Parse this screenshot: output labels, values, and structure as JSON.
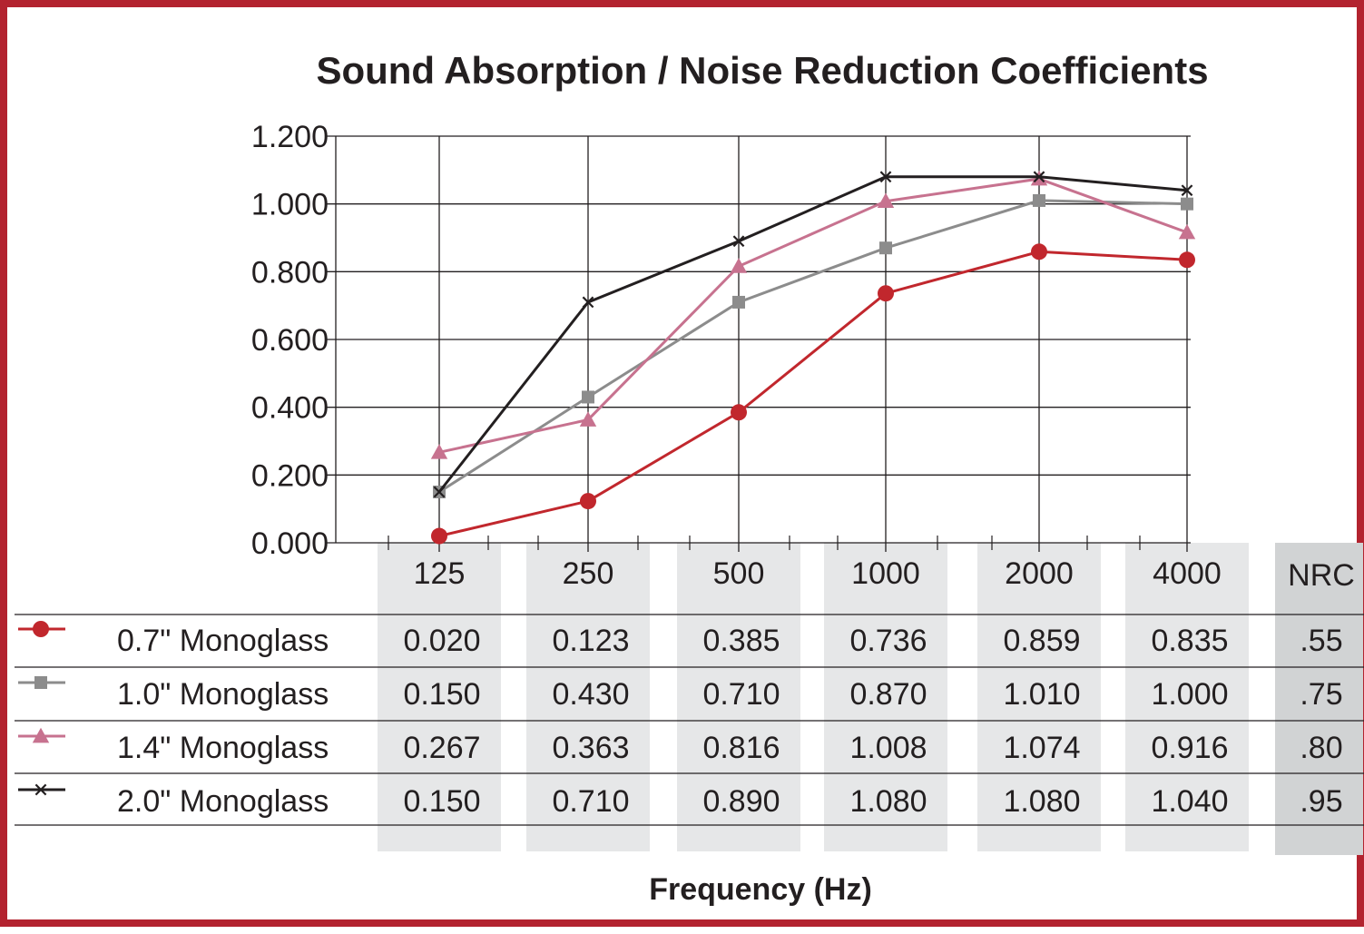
{
  "chart_data": {
    "type": "line",
    "title": "Sound Absorption / Noise Reduction Coefficients",
    "xlabel": "Frequency (Hz)",
    "ylabel": "",
    "categories": [
      "125",
      "250",
      "500",
      "1000",
      "2000",
      "4000"
    ],
    "yticks": [
      "0.000",
      "0.200",
      "0.400",
      "0.600",
      "0.800",
      "1.000",
      "1.200"
    ],
    "ylim": [
      0,
      1.2
    ],
    "grid": true,
    "extra_column_header": "NRC",
    "series": [
      {
        "name": "0.7\" Monoglass",
        "marker": "circle",
        "color": "#c1272d",
        "values": [
          0.02,
          0.123,
          0.385,
          0.736,
          0.859,
          0.835
        ],
        "table_values": [
          "0.020",
          "0.123",
          "0.385",
          "0.736",
          "0.859",
          "0.835"
        ],
        "nrc": ".55"
      },
      {
        "name": "1.0\" Monoglass",
        "marker": "square",
        "color": "#8c8c8c",
        "values": [
          0.15,
          0.43,
          0.71,
          0.87,
          1.01,
          1.0
        ],
        "table_values": [
          "0.150",
          "0.430",
          "0.710",
          "0.870",
          "1.010",
          "1.000"
        ],
        "nrc": ".75"
      },
      {
        "name": "1.4\" Monoglass",
        "marker": "triangle",
        "color": "#c7728f",
        "values": [
          0.267,
          0.363,
          0.816,
          1.008,
          1.074,
          0.916
        ],
        "table_values": [
          "0.267",
          "0.363",
          "0.816",
          "1.008",
          "1.074",
          "0.916"
        ],
        "nrc": ".80"
      },
      {
        "name": "2.0\" Monoglass",
        "marker": "x",
        "color": "#231f20",
        "values": [
          0.15,
          0.71,
          0.89,
          1.08,
          1.08,
          1.04
        ],
        "table_values": [
          "0.150",
          "0.710",
          "0.890",
          "1.080",
          "1.080",
          "1.040"
        ],
        "nrc": ".95"
      }
    ]
  },
  "colors": {
    "frame": "#b3232f",
    "column_band": "#e6e7e8",
    "nrc_band": "#d1d3d4",
    "grid": "#231f20",
    "text": "#231f20"
  }
}
